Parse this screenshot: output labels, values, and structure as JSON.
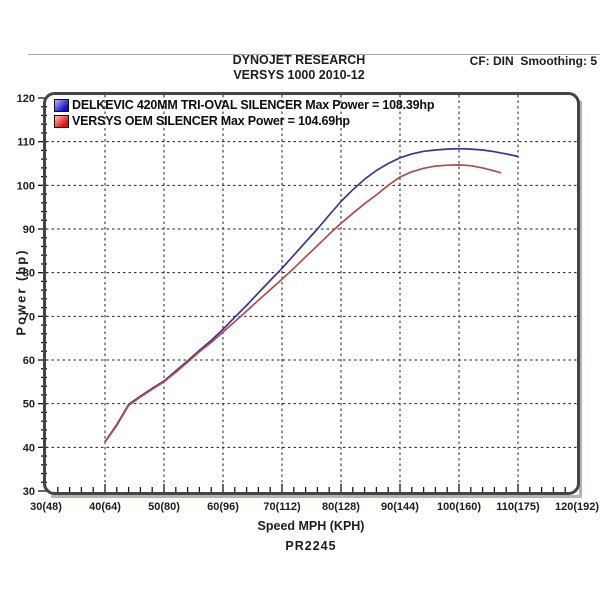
{
  "chart_data": {
    "type": "line",
    "title": "DYNOJET RESEARCH",
    "subtitle": "VERSYS 1000 2010-12",
    "correction_note": "CF: DIN  Smoothing: 5",
    "xlabel": "Speed MPH (KPH)",
    "ylabel": "Power (hp)",
    "footer_code": "PR2245",
    "xlim": [
      30,
      120
    ],
    "ylim": [
      30,
      120
    ],
    "grid": {
      "style": "dashed",
      "color": "#1f1f1f",
      "major_step": 10,
      "minor_tick_step": 2
    },
    "legend_position": "top-left-inside",
    "x_ticks": [
      {
        "value": 30,
        "label": "30(48)"
      },
      {
        "value": 40,
        "label": "40(64)"
      },
      {
        "value": 50,
        "label": "50(80)"
      },
      {
        "value": 60,
        "label": "60(96)"
      },
      {
        "value": 70,
        "label": "70(112)"
      },
      {
        "value": 80,
        "label": "80(128)"
      },
      {
        "value": 90,
        "label": "90(144)"
      },
      {
        "value": 100,
        "label": "100(160)"
      },
      {
        "value": 110,
        "label": "110(175)"
      },
      {
        "value": 120,
        "label": "120(192)"
      }
    ],
    "y_ticks": [
      {
        "value": 30,
        "label": "30"
      },
      {
        "value": 40,
        "label": "40"
      },
      {
        "value": 50,
        "label": "50"
      },
      {
        "value": 60,
        "label": "60"
      },
      {
        "value": 70,
        "label": "70"
      },
      {
        "value": 80,
        "label": "80"
      },
      {
        "value": 90,
        "label": "90"
      },
      {
        "value": 100,
        "label": "100"
      },
      {
        "value": 110,
        "label": "110"
      },
      {
        "value": 120,
        "label": "120"
      }
    ],
    "series": [
      {
        "name": "DELKEVIC 420MM TRI-OVAL SILENCER",
        "legend": "DELKEVIC 420MM TRI-OVAL SILENCER Max Power = 108.39hp",
        "max_power_hp": 108.39,
        "color": "#34349a",
        "swatch_colors": [
          "#b8b8f2",
          "#1414c4"
        ],
        "points": [
          [
            40,
            41.3
          ],
          [
            42,
            45.2
          ],
          [
            44,
            49.8
          ],
          [
            46,
            51.7
          ],
          [
            48,
            53.5
          ],
          [
            50,
            55.2
          ],
          [
            52,
            57.5
          ],
          [
            54,
            59.8
          ],
          [
            56,
            62.2
          ],
          [
            58,
            64.5
          ],
          [
            60,
            67.0
          ],
          [
            62,
            69.8
          ],
          [
            64,
            72.5
          ],
          [
            66,
            75.4
          ],
          [
            68,
            78.2
          ],
          [
            70,
            81.0
          ],
          [
            72,
            84.0
          ],
          [
            74,
            87.0
          ],
          [
            76,
            90.0
          ],
          [
            78,
            93.2
          ],
          [
            80,
            96.3
          ],
          [
            82,
            99.0
          ],
          [
            84,
            101.4
          ],
          [
            86,
            103.4
          ],
          [
            88,
            105.0
          ],
          [
            90,
            106.3
          ],
          [
            92,
            107.2
          ],
          [
            94,
            107.8
          ],
          [
            96,
            108.1
          ],
          [
            98,
            108.3
          ],
          [
            100,
            108.39
          ],
          [
            102,
            108.3
          ],
          [
            104,
            108.1
          ],
          [
            106,
            107.7
          ],
          [
            108,
            107.2
          ],
          [
            110,
            106.6
          ]
        ]
      },
      {
        "name": "VERSYS OEM SILENCER",
        "legend": "VERSYS OEM SILENCER Max Power = 104.69hp",
        "max_power_hp": 104.69,
        "color": "#b34b4b",
        "swatch_colors": [
          "#f8c2c2",
          "#e01414"
        ],
        "points": [
          [
            40,
            41.2
          ],
          [
            42,
            45.0
          ],
          [
            44,
            49.6
          ],
          [
            46,
            51.5
          ],
          [
            48,
            53.3
          ],
          [
            50,
            55.0
          ],
          [
            52,
            57.2
          ],
          [
            54,
            59.5
          ],
          [
            56,
            61.9
          ],
          [
            58,
            64.0
          ],
          [
            60,
            66.4
          ],
          [
            62,
            68.8
          ],
          [
            64,
            71.2
          ],
          [
            66,
            73.7
          ],
          [
            68,
            76.1
          ],
          [
            70,
            78.5
          ],
          [
            72,
            81.0
          ],
          [
            74,
            83.6
          ],
          [
            76,
            86.2
          ],
          [
            78,
            88.8
          ],
          [
            80,
            91.3
          ],
          [
            82,
            93.6
          ],
          [
            84,
            95.8
          ],
          [
            86,
            97.8
          ],
          [
            88,
            100.0
          ],
          [
            90,
            101.9
          ],
          [
            92,
            103.1
          ],
          [
            94,
            103.9
          ],
          [
            96,
            104.4
          ],
          [
            98,
            104.6
          ],
          [
            100,
            104.69
          ],
          [
            102,
            104.5
          ],
          [
            104,
            104.0
          ],
          [
            106,
            103.3
          ],
          [
            107,
            102.9
          ]
        ]
      }
    ]
  }
}
